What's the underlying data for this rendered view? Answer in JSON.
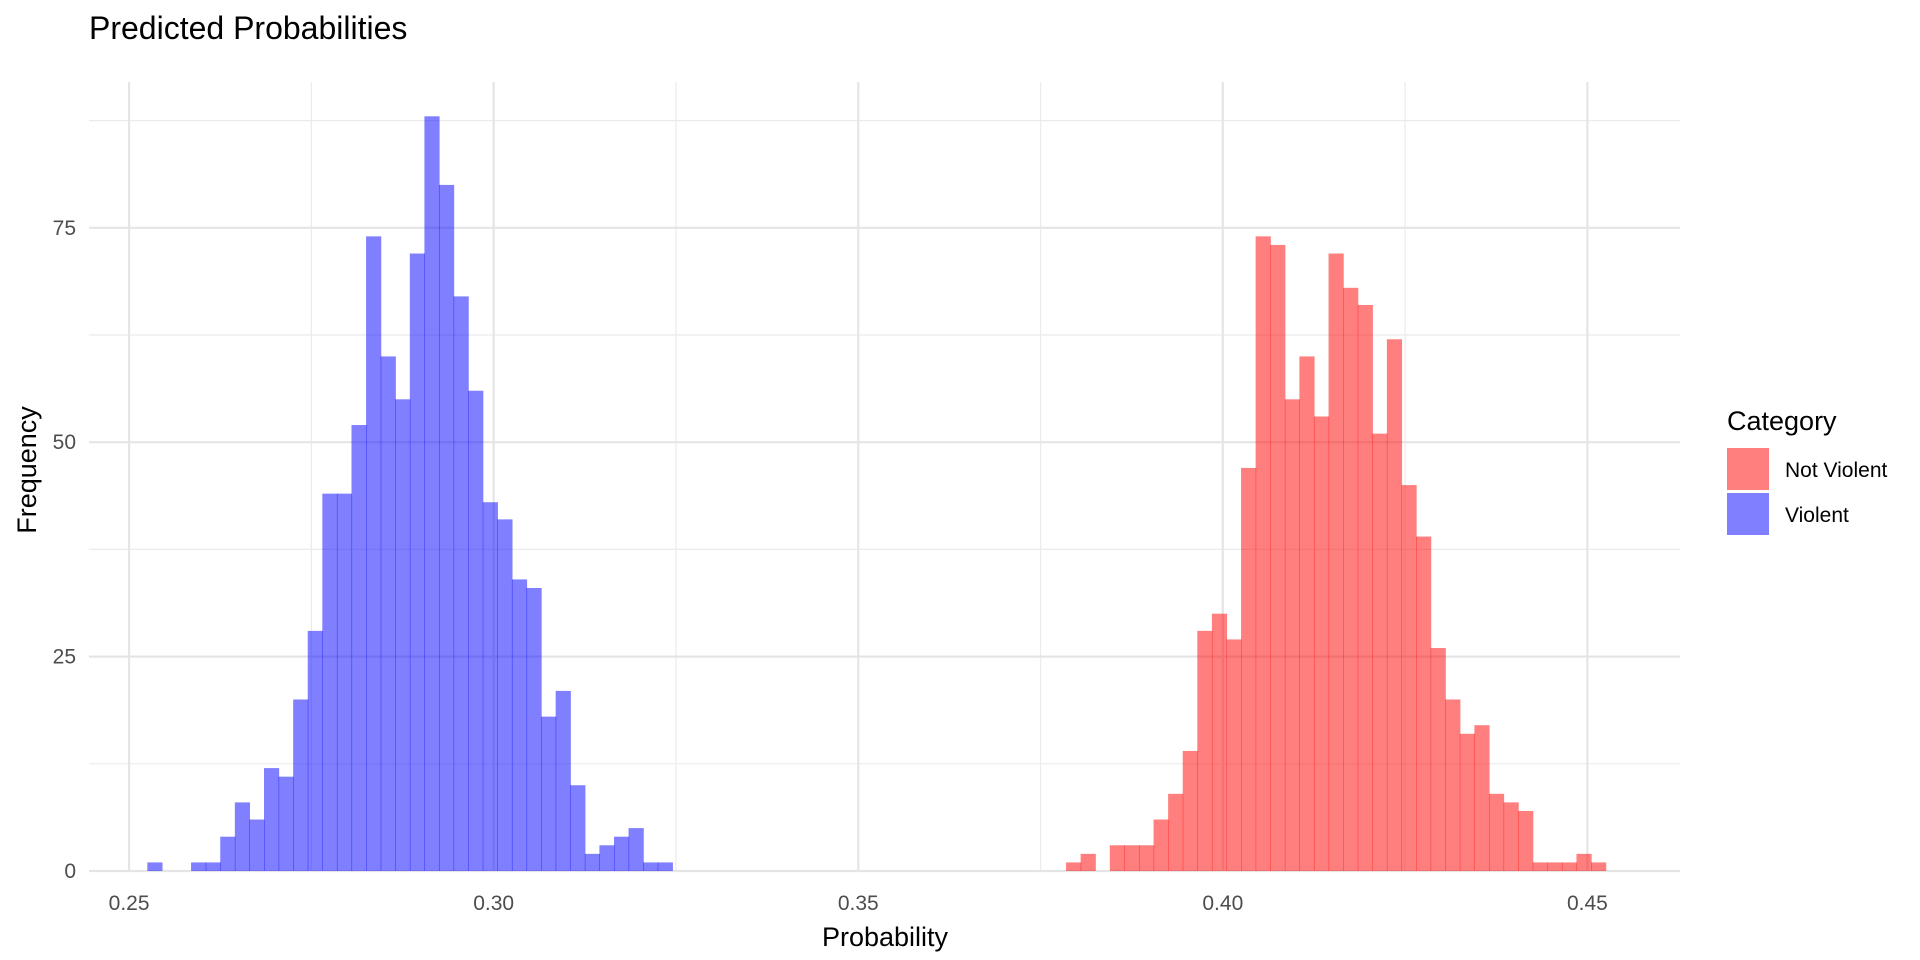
{
  "chart_data": {
    "type": "histogram",
    "title": "Predicted Probabilities",
    "xlabel": "Probability",
    "ylabel": "Frequency",
    "xlim": [
      0.2445,
      0.4627
    ],
    "ylim": [
      0,
      92
    ],
    "x_ticks": [
      0.25,
      0.3,
      0.35,
      0.4,
      0.45
    ],
    "x_tick_labels": [
      "0.25",
      "0.30",
      "0.35",
      "0.40",
      "0.45"
    ],
    "y_ticks": [
      0,
      25,
      50,
      75
    ],
    "y_tick_labels": [
      "0",
      "25",
      "50",
      "75"
    ],
    "bin_width": 0.002,
    "grid": true,
    "legend": {
      "title": "Category",
      "position": "right",
      "entries": [
        {
          "name": "Not Violent",
          "color": "#ff0000"
        },
        {
          "name": "Violent",
          "color": "#0000ff"
        }
      ]
    },
    "series": [
      {
        "name": "Violent",
        "color": "#0000ff",
        "opacity": 0.5,
        "bins": [
          {
            "x": 0.2535,
            "count": 1
          },
          {
            "x": 0.2595,
            "count": 1
          },
          {
            "x": 0.2615,
            "count": 1
          },
          {
            "x": 0.2635,
            "count": 4
          },
          {
            "x": 0.2655,
            "count": 8
          },
          {
            "x": 0.2675,
            "count": 6
          },
          {
            "x": 0.2695,
            "count": 12
          },
          {
            "x": 0.2715,
            "count": 11
          },
          {
            "x": 0.2735,
            "count": 20
          },
          {
            "x": 0.2755,
            "count": 28
          },
          {
            "x": 0.2775,
            "count": 44
          },
          {
            "x": 0.2795,
            "count": 44
          },
          {
            "x": 0.2815,
            "count": 52
          },
          {
            "x": 0.2835,
            "count": 74
          },
          {
            "x": 0.2855,
            "count": 60
          },
          {
            "x": 0.2875,
            "count": 55
          },
          {
            "x": 0.2895,
            "count": 72
          },
          {
            "x": 0.2915,
            "count": 88
          },
          {
            "x": 0.2935,
            "count": 80
          },
          {
            "x": 0.2955,
            "count": 67
          },
          {
            "x": 0.2975,
            "count": 56
          },
          {
            "x": 0.2995,
            "count": 43
          },
          {
            "x": 0.3015,
            "count": 41
          },
          {
            "x": 0.3035,
            "count": 34
          },
          {
            "x": 0.3055,
            "count": 33
          },
          {
            "x": 0.3075,
            "count": 18
          },
          {
            "x": 0.3095,
            "count": 21
          },
          {
            "x": 0.3115,
            "count": 10
          },
          {
            "x": 0.3135,
            "count": 2
          },
          {
            "x": 0.3155,
            "count": 3
          },
          {
            "x": 0.3175,
            "count": 4
          },
          {
            "x": 0.3195,
            "count": 5
          },
          {
            "x": 0.3215,
            "count": 1
          },
          {
            "x": 0.3235,
            "count": 1
          }
        ]
      },
      {
        "name": "Not Violent",
        "color": "#ff0000",
        "opacity": 0.5,
        "bins": [
          {
            "x": 0.3795,
            "count": 1
          },
          {
            "x": 0.3815,
            "count": 2
          },
          {
            "x": 0.3855,
            "count": 3
          },
          {
            "x": 0.3875,
            "count": 3
          },
          {
            "x": 0.3895,
            "count": 3
          },
          {
            "x": 0.3915,
            "count": 6
          },
          {
            "x": 0.3935,
            "count": 9
          },
          {
            "x": 0.3955,
            "count": 14
          },
          {
            "x": 0.3975,
            "count": 28
          },
          {
            "x": 0.3995,
            "count": 30
          },
          {
            "x": 0.4015,
            "count": 27
          },
          {
            "x": 0.4035,
            "count": 47
          },
          {
            "x": 0.4055,
            "count": 74
          },
          {
            "x": 0.4075,
            "count": 73
          },
          {
            "x": 0.4095,
            "count": 55
          },
          {
            "x": 0.4115,
            "count": 60
          },
          {
            "x": 0.4135,
            "count": 53
          },
          {
            "x": 0.4155,
            "count": 72
          },
          {
            "x": 0.4175,
            "count": 68
          },
          {
            "x": 0.4195,
            "count": 66
          },
          {
            "x": 0.4215,
            "count": 51
          },
          {
            "x": 0.4235,
            "count": 62
          },
          {
            "x": 0.4255,
            "count": 45
          },
          {
            "x": 0.4275,
            "count": 39
          },
          {
            "x": 0.4295,
            "count": 26
          },
          {
            "x": 0.4315,
            "count": 20
          },
          {
            "x": 0.4335,
            "count": 16
          },
          {
            "x": 0.4355,
            "count": 17
          },
          {
            "x": 0.4375,
            "count": 9
          },
          {
            "x": 0.4395,
            "count": 8
          },
          {
            "x": 0.4415,
            "count": 7
          },
          {
            "x": 0.4435,
            "count": 1
          },
          {
            "x": 0.4455,
            "count": 1
          },
          {
            "x": 0.4475,
            "count": 1
          },
          {
            "x": 0.4495,
            "count": 2
          },
          {
            "x": 0.4515,
            "count": 1
          }
        ]
      }
    ]
  }
}
